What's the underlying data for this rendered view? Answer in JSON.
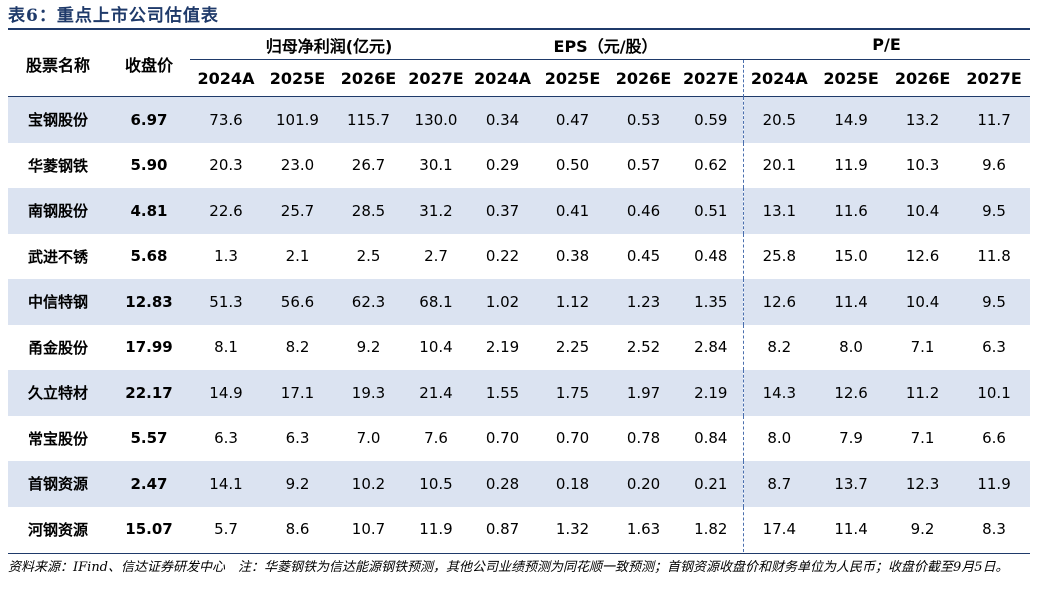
{
  "title": "表6：重点上市公司估值表",
  "headers": {
    "stock_name": "股票名称",
    "close_price": "收盘价",
    "group_profit": "归母净利润(亿元)",
    "group_eps": "EPS（元/股）",
    "group_pe": "P/E",
    "years": [
      "2024A",
      "2025E",
      "2026E",
      "2027E"
    ]
  },
  "rows": [
    {
      "name": "宝钢股份",
      "price": "6.97",
      "profit": [
        "73.6",
        "101.9",
        "115.7",
        "130.0"
      ],
      "eps": [
        "0.34",
        "0.47",
        "0.53",
        "0.59"
      ],
      "pe": [
        "20.5",
        "14.9",
        "13.2",
        "11.7"
      ]
    },
    {
      "name": "华菱钢铁",
      "price": "5.90",
      "profit": [
        "20.3",
        "23.0",
        "26.7",
        "30.1"
      ],
      "eps": [
        "0.29",
        "0.50",
        "0.57",
        "0.62"
      ],
      "pe": [
        "20.1",
        "11.9",
        "10.3",
        "9.6"
      ]
    },
    {
      "name": "南钢股份",
      "price": "4.81",
      "profit": [
        "22.6",
        "25.7",
        "28.5",
        "31.2"
      ],
      "eps": [
        "0.37",
        "0.41",
        "0.46",
        "0.51"
      ],
      "pe": [
        "13.1",
        "11.6",
        "10.4",
        "9.5"
      ]
    },
    {
      "name": "武进不锈",
      "price": "5.68",
      "profit": [
        "1.3",
        "2.1",
        "2.5",
        "2.7"
      ],
      "eps": [
        "0.22",
        "0.38",
        "0.45",
        "0.48"
      ],
      "pe": [
        "25.8",
        "15.0",
        "12.6",
        "11.8"
      ]
    },
    {
      "name": "中信特钢",
      "price": "12.83",
      "profit": [
        "51.3",
        "56.6",
        "62.3",
        "68.1"
      ],
      "eps": [
        "1.02",
        "1.12",
        "1.23",
        "1.35"
      ],
      "pe": [
        "12.6",
        "11.4",
        "10.4",
        "9.5"
      ]
    },
    {
      "name": "甬金股份",
      "price": "17.99",
      "profit": [
        "8.1",
        "8.2",
        "9.2",
        "10.4"
      ],
      "eps": [
        "2.19",
        "2.25",
        "2.52",
        "2.84"
      ],
      "pe": [
        "8.2",
        "8.0",
        "7.1",
        "6.3"
      ]
    },
    {
      "name": "久立特材",
      "price": "22.17",
      "profit": [
        "14.9",
        "17.1",
        "19.3",
        "21.4"
      ],
      "eps": [
        "1.55",
        "1.75",
        "1.97",
        "2.19"
      ],
      "pe": [
        "14.3",
        "12.6",
        "11.2",
        "10.1"
      ]
    },
    {
      "name": "常宝股份",
      "price": "5.57",
      "profit": [
        "6.3",
        "6.3",
        "7.0",
        "7.6"
      ],
      "eps": [
        "0.70",
        "0.70",
        "0.78",
        "0.84"
      ],
      "pe": [
        "8.0",
        "7.9",
        "7.1",
        "6.6"
      ]
    },
    {
      "name": "首钢资源",
      "price": "2.47",
      "profit": [
        "14.1",
        "9.2",
        "10.2",
        "10.5"
      ],
      "eps": [
        "0.28",
        "0.18",
        "0.20",
        "0.21"
      ],
      "pe": [
        "8.7",
        "13.7",
        "12.3",
        "11.9"
      ]
    },
    {
      "name": "河钢资源",
      "price": "15.07",
      "profit": [
        "5.7",
        "8.6",
        "10.7",
        "11.9"
      ],
      "eps": [
        "0.87",
        "1.32",
        "1.63",
        "1.82"
      ],
      "pe": [
        "17.4",
        "11.4",
        "9.2",
        "8.3"
      ]
    }
  ],
  "footnote": "资料来源：IFind、信达证券研发中心　注：华菱钢铁为信达能源钢铁预测，其他公司业绩预测为同花顺一致预测；首钢资源收盘价和财务单位为人民币；收盘价截至9月5日。",
  "colors": {
    "accent": "#1f3a6a",
    "row_alt": "#dbe3f1",
    "divider": "#4a6fae"
  }
}
